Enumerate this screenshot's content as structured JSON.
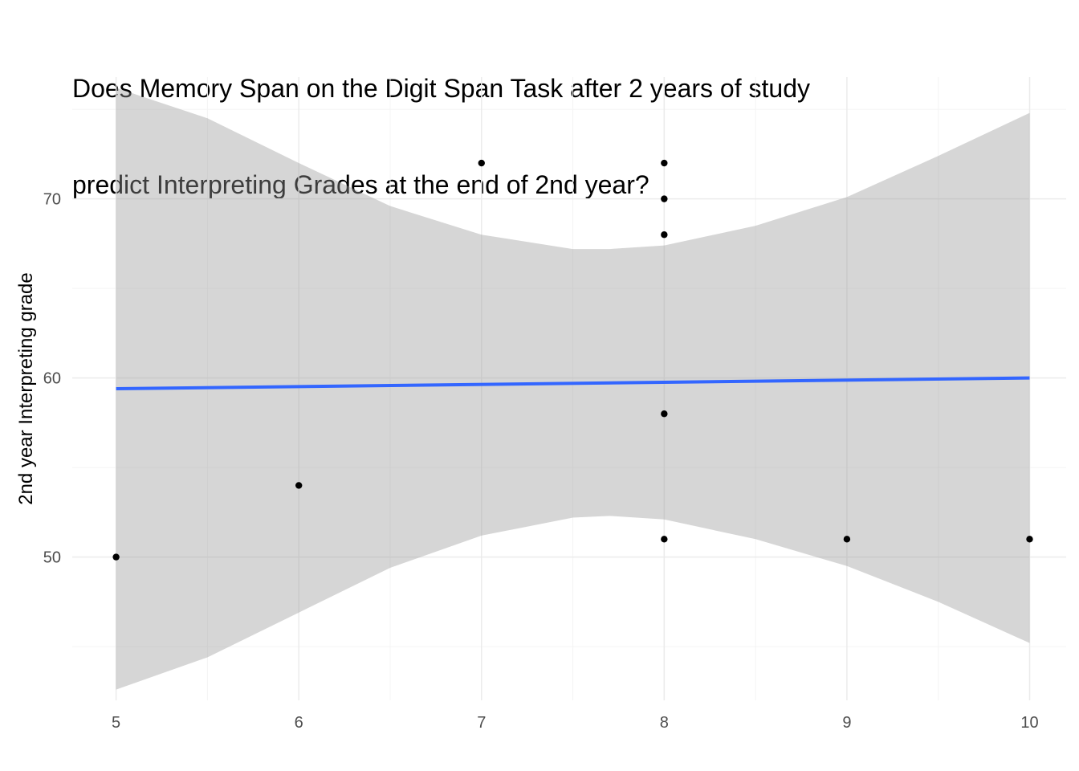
{
  "chart_data": {
    "type": "scatter",
    "title_lines": [
      "Does Memory Span on the Digit Span Task after 2 years of study",
      "predict Interpreting Grades at the end of 2nd year?"
    ],
    "xlabel": "",
    "ylabel": "2nd year Interpreting grade",
    "xlim": [
      4.76,
      10.2
    ],
    "ylim": [
      42.0,
      76.8
    ],
    "x_ticks": [
      5,
      6,
      7,
      8,
      9,
      10
    ],
    "y_ticks": [
      50,
      60,
      70
    ],
    "x_minor_gridlines": [
      5.5,
      6.5,
      7.5,
      8.5,
      9.5
    ],
    "y_minor_gridlines": [
      45,
      55,
      65,
      75
    ],
    "grid": true,
    "legend": "none",
    "points": [
      {
        "x": 5,
        "y": 50
      },
      {
        "x": 6,
        "y": 54
      },
      {
        "x": 7,
        "y": 72
      },
      {
        "x": 8,
        "y": 72
      },
      {
        "x": 8,
        "y": 70
      },
      {
        "x": 8,
        "y": 68
      },
      {
        "x": 8,
        "y": 58
      },
      {
        "x": 8,
        "y": 51
      },
      {
        "x": 9,
        "y": 51
      },
      {
        "x": 10,
        "y": 51
      }
    ],
    "fit_line": {
      "method": "lm",
      "x": [
        5,
        10
      ],
      "y": [
        59.4,
        60.0
      ]
    },
    "confidence_band": [
      {
        "x": 5.0,
        "lower": 42.6,
        "upper": 76.2
      },
      {
        "x": 5.5,
        "lower": 44.4,
        "upper": 74.5
      },
      {
        "x": 6.0,
        "lower": 46.9,
        "upper": 72.0
      },
      {
        "x": 6.5,
        "lower": 49.4,
        "upper": 69.6
      },
      {
        "x": 7.0,
        "lower": 51.2,
        "upper": 68.0
      },
      {
        "x": 7.5,
        "lower": 52.2,
        "upper": 67.2
      },
      {
        "x": 7.7,
        "lower": 52.3,
        "upper": 67.2
      },
      {
        "x": 8.0,
        "lower": 52.1,
        "upper": 67.4
      },
      {
        "x": 8.5,
        "lower": 51.0,
        "upper": 68.5
      },
      {
        "x": 9.0,
        "lower": 49.5,
        "upper": 70.1
      },
      {
        "x": 9.5,
        "lower": 47.5,
        "upper": 72.4
      },
      {
        "x": 10.0,
        "lower": 45.2,
        "upper": 74.8
      }
    ],
    "colors": {
      "background": "#ffffff",
      "grid_major": "#ebebeb",
      "grid_minor": "#f4f4f4",
      "band": "#999999",
      "band_opacity": 0.4,
      "line": "#3366ff",
      "point": "#000000",
      "tick_label": "#4d4d4d",
      "axis_title": "#000000"
    }
  }
}
